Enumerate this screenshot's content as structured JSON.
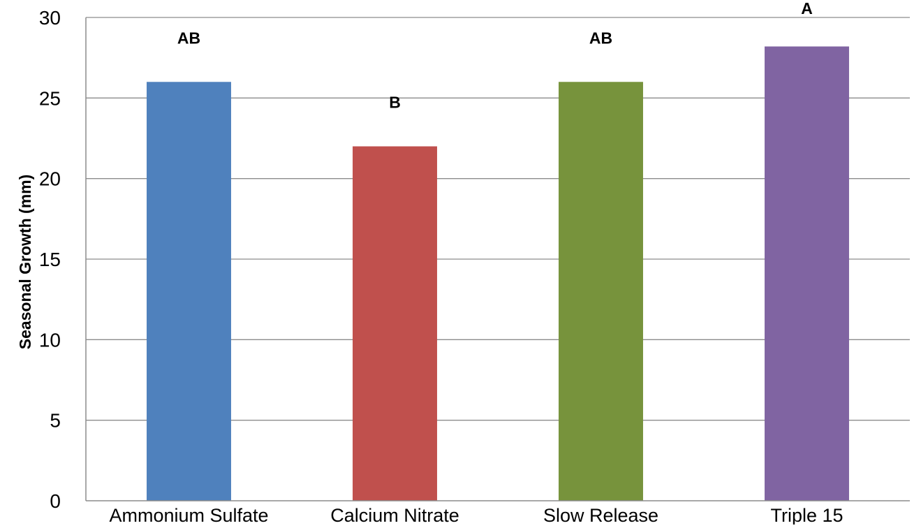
{
  "chart_data": {
    "type": "bar",
    "title": "",
    "xlabel": "",
    "ylabel": "Seasonal  Growth (mm)",
    "ylim": [
      0,
      30
    ],
    "yticks": [
      0,
      5,
      10,
      15,
      20,
      25,
      30
    ],
    "grid": true,
    "categories": [
      "Ammonium Sulfate",
      "Calcium Nitrate",
      "Slow Release",
      "Triple 15"
    ],
    "values": [
      26,
      22,
      26,
      28.2
    ],
    "data_labels": [
      "AB",
      "B",
      "AB",
      "A"
    ],
    "colors": [
      "#4f81bd",
      "#c0504d",
      "#77933c",
      "#8064a2"
    ]
  }
}
